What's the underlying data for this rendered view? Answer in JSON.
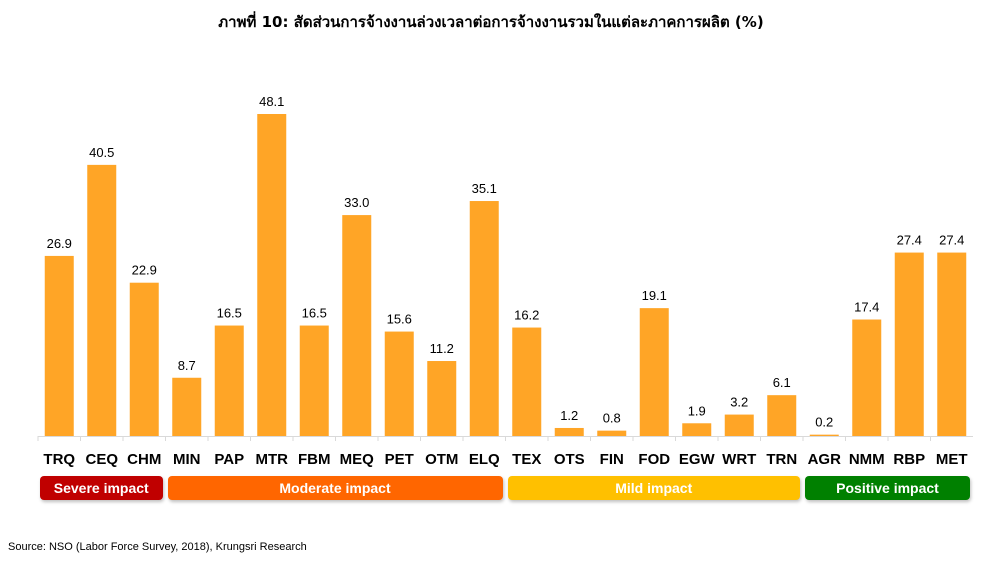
{
  "chart_data": {
    "type": "bar",
    "title": "ภาพที่ 10: สัดส่วนการจ้างงานล่วงเวลาต่อการจ้างงานรวมในแต่ละภาคการผลิต (%)",
    "categories": [
      "TRQ",
      "CEQ",
      "CHM",
      "MIN",
      "PAP",
      "MTR",
      "FBM",
      "MEQ",
      "PET",
      "OTM",
      "ELQ",
      "TEX",
      "OTS",
      "FIN",
      "FOD",
      "EGW",
      "WRT",
      "TRN",
      "AGR",
      "NMM",
      "RBP",
      "MET"
    ],
    "values": [
      26.9,
      40.5,
      22.9,
      8.7,
      16.5,
      48.1,
      16.5,
      33.0,
      15.6,
      11.2,
      35.1,
      16.2,
      1.2,
      0.8,
      19.1,
      1.9,
      3.2,
      6.1,
      0.2,
      17.4,
      27.4,
      27.4
    ],
    "ylim": [
      0,
      48.1
    ],
    "grid": false,
    "bar_color": "#FFA526",
    "groups": [
      {
        "label": "Severe impact",
        "color": "#C00000",
        "from": 0,
        "to": 2
      },
      {
        "label": "Moderate impact",
        "color": "#FF6600",
        "from": 3,
        "to": 10
      },
      {
        "label": "Mild impact",
        "color": "#FFC000",
        "from": 11,
        "to": 17
      },
      {
        "label": "Positive impact",
        "color": "#008000",
        "from": 18,
        "to": 21
      }
    ]
  },
  "source": "Source: NSO (Labor Force Survey, 2018), Krungsri Research"
}
